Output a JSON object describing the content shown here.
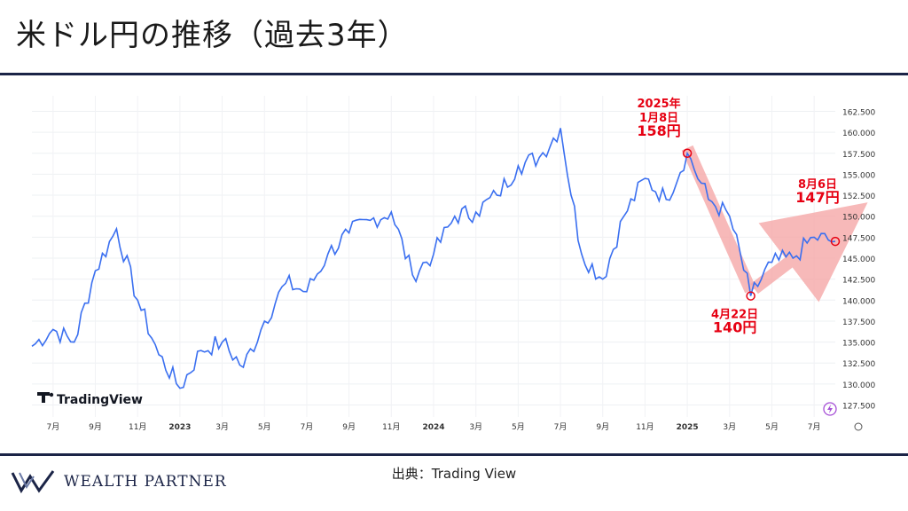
{
  "title": "米ドル円の推移（過去3年）",
  "source": "出典：Trading View",
  "brand": "Wealth Partner",
  "watermark": "TradingView",
  "colors": {
    "line": "#3a6ff0",
    "highlight": "#e60012",
    "arrow": "#f6a8a8",
    "navy": "#1b2447"
  },
  "chart_data": {
    "type": "line",
    "y_axis_labels": [
      "162.500",
      "160.000",
      "157.500",
      "155.000",
      "152.500",
      "150.000",
      "147.500",
      "145.000",
      "142.500",
      "140.000",
      "137.500",
      "135.000",
      "132.500",
      "130.000",
      "127.500"
    ],
    "ylim": [
      126.5,
      163.5
    ],
    "x_axis_labels": [
      "7月",
      "9月",
      "11月",
      "2023",
      "3月",
      "5月",
      "7月",
      "9月",
      "11月",
      "2024",
      "3月",
      "5月",
      "7月",
      "9月",
      "11月",
      "2025",
      "3月",
      "5月",
      "7月"
    ],
    "x": [
      "2022-06",
      "2022-07",
      "2022-08",
      "2022-09",
      "2022-10",
      "2022-11",
      "2022-12",
      "2023-01",
      "2023-02",
      "2023-03",
      "2023-04",
      "2023-05",
      "2023-06",
      "2023-07",
      "2023-08",
      "2023-09",
      "2023-10",
      "2023-11",
      "2023-12",
      "2024-01",
      "2024-02",
      "2024-03",
      "2024-04",
      "2024-05",
      "2024-06",
      "2024-07",
      "2024-08",
      "2024-09",
      "2024-10",
      "2024-11",
      "2024-12",
      "2025-01",
      "2025-02",
      "2025-03",
      "2025-04",
      "2025-05",
      "2025-06",
      "2025-07",
      "2025-08"
    ],
    "series": [
      {
        "values": [
          134.5,
          136.5,
          135.0,
          143.5,
          148.5,
          140.0,
          133.5,
          129.5,
          134.0,
          135.0,
          132.0,
          137.5,
          142.0,
          141.0,
          145.5,
          148.0,
          149.5,
          150.5,
          143.0,
          145.5,
          150.0,
          150.5,
          152.5,
          156.0,
          157.0,
          160.5,
          145.5,
          142.5,
          150.0,
          154.5,
          152.0,
          157.5,
          152.0,
          150.0,
          140.5,
          144.5,
          145.0,
          147.5,
          147.0
        ]
      }
    ],
    "annotations": [
      {
        "date": "2025年",
        "day": "1月8日",
        "price": "158円"
      },
      {
        "date": "",
        "day": "4月22日",
        "price": "140円"
      },
      {
        "date": "",
        "day": "8月6日",
        "price": "147円"
      }
    ],
    "grid": true
  }
}
